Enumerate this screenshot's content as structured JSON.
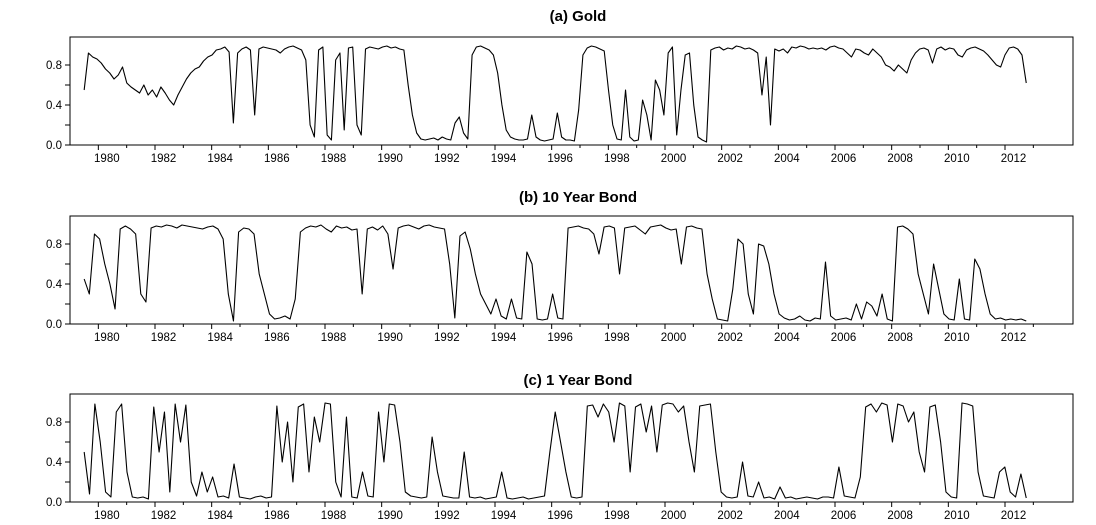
{
  "chart_data": [
    {
      "type": "line",
      "title": "(a) Gold",
      "xlim": [
        1979.0,
        2014.4
      ],
      "ylim": [
        0,
        1
      ],
      "x_ticks": [
        "1980",
        "1982",
        "1984",
        "1986",
        "1988",
        "1990",
        "1992",
        "1994",
        "1996",
        "1998",
        "2000",
        "2002",
        "2004",
        "2006",
        "2008",
        "2010",
        "2012"
      ],
      "y_ticks": [
        "0.0",
        "0.4",
        "0.8"
      ],
      "series": [
        {
          "x_start": 1979.5,
          "x_end": 2012.75,
          "values": [
            0.55,
            0.92,
            0.88,
            0.86,
            0.82,
            0.76,
            0.72,
            0.66,
            0.7,
            0.78,
            0.62,
            0.58,
            0.55,
            0.52,
            0.6,
            0.5,
            0.55,
            0.48,
            0.58,
            0.52,
            0.45,
            0.4,
            0.5,
            0.58,
            0.66,
            0.72,
            0.76,
            0.78,
            0.84,
            0.88,
            0.9,
            0.95,
            0.96,
            0.98,
            0.93,
            0.22,
            0.92,
            0.96,
            0.98,
            0.95,
            0.3,
            0.96,
            0.98,
            0.97,
            0.96,
            0.95,
            0.92,
            0.96,
            0.98,
            0.99,
            0.97,
            0.95,
            0.85,
            0.2,
            0.08,
            0.95,
            0.98,
            0.1,
            0.05,
            0.85,
            0.92,
            0.15,
            0.97,
            0.98,
            0.2,
            0.1,
            0.96,
            0.98,
            0.97,
            0.96,
            0.98,
            0.99,
            0.97,
            0.98,
            0.96,
            0.95,
            0.6,
            0.3,
            0.12,
            0.06,
            0.05,
            0.06,
            0.07,
            0.05,
            0.08,
            0.06,
            0.05,
            0.22,
            0.28,
            0.12,
            0.06,
            0.9,
            0.98,
            0.99,
            0.97,
            0.95,
            0.9,
            0.72,
            0.4,
            0.15,
            0.08,
            0.06,
            0.05,
            0.05,
            0.06,
            0.3,
            0.08,
            0.05,
            0.04,
            0.05,
            0.06,
            0.32,
            0.08,
            0.05,
            0.05,
            0.04,
            0.35,
            0.9,
            0.97,
            0.99,
            0.98,
            0.96,
            0.94,
            0.55,
            0.2,
            0.06,
            0.05,
            0.55,
            0.08,
            0.04,
            0.05,
            0.45,
            0.3,
            0.05,
            0.65,
            0.55,
            0.3,
            0.92,
            0.98,
            0.1,
            0.55,
            0.9,
            0.92,
            0.4,
            0.08,
            0.05,
            0.03,
            0.95,
            0.97,
            0.98,
            0.95,
            0.97,
            0.96,
            0.99,
            0.98,
            0.96,
            0.97,
            0.95,
            0.92,
            0.5,
            0.88,
            0.2,
            0.96,
            0.94,
            0.96,
            0.92,
            0.98,
            0.97,
            0.99,
            0.98,
            0.96,
            0.97,
            0.96,
            0.97,
            0.95,
            0.98,
            0.99,
            0.97,
            0.96,
            0.92,
            0.88,
            0.96,
            0.95,
            0.92,
            0.9,
            0.96,
            0.92,
            0.88,
            0.8,
            0.78,
            0.74,
            0.8,
            0.76,
            0.72,
            0.85,
            0.92,
            0.96,
            0.97,
            0.95,
            0.82,
            0.96,
            0.98,
            0.95,
            0.97,
            0.96,
            0.9,
            0.88,
            0.95,
            0.97,
            0.98,
            0.96,
            0.94,
            0.9,
            0.85,
            0.8,
            0.78,
            0.9,
            0.97,
            0.98,
            0.96,
            0.9,
            0.62
          ]
        }
      ]
    },
    {
      "type": "line",
      "title": "(b) 10 Year Bond",
      "xlim": [
        1979.0,
        2014.4
      ],
      "ylim": [
        0,
        1
      ],
      "x_ticks": [
        "1980",
        "1982",
        "1984",
        "1986",
        "1988",
        "1990",
        "1992",
        "1994",
        "1996",
        "1998",
        "2000",
        "2002",
        "2004",
        "2006",
        "2008",
        "2010",
        "2012"
      ],
      "y_ticks": [
        "0.0",
        "0.4",
        "0.8"
      ],
      "series": [
        {
          "x_start": 1979.5,
          "x_end": 2012.75,
          "values": [
            0.45,
            0.3,
            0.9,
            0.85,
            0.6,
            0.4,
            0.15,
            0.95,
            0.98,
            0.95,
            0.9,
            0.3,
            0.22,
            0.96,
            0.98,
            0.97,
            0.99,
            0.98,
            0.96,
            0.99,
            0.98,
            0.97,
            0.96,
            0.95,
            0.97,
            0.98,
            0.95,
            0.85,
            0.3,
            0.03,
            0.92,
            0.96,
            0.95,
            0.9,
            0.5,
            0.3,
            0.1,
            0.05,
            0.06,
            0.08,
            0.05,
            0.25,
            0.92,
            0.96,
            0.98,
            0.97,
            0.99,
            0.95,
            0.92,
            0.98,
            0.96,
            0.97,
            0.94,
            0.95,
            0.3,
            0.95,
            0.97,
            0.94,
            0.98,
            0.9,
            0.55,
            0.96,
            0.98,
            0.99,
            0.97,
            0.95,
            0.98,
            0.99,
            0.97,
            0.96,
            0.95,
            0.6,
            0.06,
            0.88,
            0.92,
            0.75,
            0.5,
            0.3,
            0.2,
            0.1,
            0.25,
            0.08,
            0.05,
            0.25,
            0.06,
            0.05,
            0.72,
            0.6,
            0.05,
            0.04,
            0.05,
            0.3,
            0.06,
            0.05,
            0.96,
            0.97,
            0.98,
            0.96,
            0.95,
            0.9,
            0.7,
            0.97,
            0.98,
            0.96,
            0.5,
            0.96,
            0.97,
            0.98,
            0.94,
            0.9,
            0.97,
            0.98,
            0.99,
            0.96,
            0.94,
            0.95,
            0.6,
            0.97,
            0.98,
            0.96,
            0.95,
            0.5,
            0.25,
            0.05,
            0.04,
            0.03,
            0.35,
            0.85,
            0.8,
            0.3,
            0.1,
            0.8,
            0.78,
            0.6,
            0.3,
            0.1,
            0.06,
            0.04,
            0.05,
            0.08,
            0.04,
            0.03,
            0.06,
            0.05,
            0.62,
            0.08,
            0.04,
            0.05,
            0.06,
            0.04,
            0.2,
            0.05,
            0.22,
            0.18,
            0.08,
            0.3,
            0.05,
            0.03,
            0.97,
            0.98,
            0.95,
            0.9,
            0.5,
            0.3,
            0.1,
            0.6,
            0.35,
            0.1,
            0.05,
            0.04,
            0.45,
            0.05,
            0.04,
            0.65,
            0.55,
            0.3,
            0.1,
            0.05,
            0.06,
            0.04,
            0.05,
            0.04,
            0.05,
            0.03
          ]
        }
      ]
    },
    {
      "type": "line",
      "title": "(c) 1 Year Bond",
      "xlim": [
        1979.0,
        2014.4
      ],
      "ylim": [
        0,
        1
      ],
      "x_ticks": [
        "1980",
        "1982",
        "1984",
        "1986",
        "1988",
        "1990",
        "1992",
        "1994",
        "1996",
        "1998",
        "2000",
        "2002",
        "2004",
        "2006",
        "2008",
        "2010",
        "2012"
      ],
      "y_ticks": [
        "0.0",
        "0.4",
        "0.8"
      ],
      "series": [
        {
          "x_start": 1979.5,
          "x_end": 2012.75,
          "values": [
            0.5,
            0.08,
            0.98,
            0.6,
            0.1,
            0.05,
            0.9,
            0.98,
            0.3,
            0.05,
            0.04,
            0.05,
            0.03,
            0.95,
            0.5,
            0.9,
            0.1,
            0.98,
            0.6,
            0.97,
            0.2,
            0.06,
            0.3,
            0.1,
            0.25,
            0.05,
            0.06,
            0.04,
            0.38,
            0.05,
            0.04,
            0.03,
            0.05,
            0.06,
            0.04,
            0.05,
            0.96,
            0.4,
            0.8,
            0.2,
            0.95,
            0.98,
            0.3,
            0.85,
            0.6,
            0.99,
            0.98,
            0.2,
            0.05,
            0.85,
            0.05,
            0.04,
            0.3,
            0.06,
            0.05,
            0.9,
            0.4,
            0.98,
            0.97,
            0.6,
            0.1,
            0.06,
            0.05,
            0.04,
            0.05,
            0.65,
            0.3,
            0.06,
            0.05,
            0.04,
            0.04,
            0.5,
            0.05,
            0.04,
            0.05,
            0.03,
            0.04,
            0.05,
            0.3,
            0.04,
            0.03,
            0.04,
            0.05,
            0.03,
            0.04,
            0.05,
            0.06,
            0.5,
            0.9,
            0.6,
            0.3,
            0.05,
            0.04,
            0.05,
            0.96,
            0.97,
            0.85,
            0.98,
            0.9,
            0.6,
            0.99,
            0.96,
            0.3,
            0.95,
            0.98,
            0.7,
            0.96,
            0.5,
            0.97,
            0.99,
            0.98,
            0.9,
            0.96,
            0.6,
            0.3,
            0.96,
            0.97,
            0.98,
            0.5,
            0.1,
            0.05,
            0.04,
            0.05,
            0.4,
            0.06,
            0.05,
            0.2,
            0.04,
            0.05,
            0.03,
            0.15,
            0.04,
            0.05,
            0.03,
            0.04,
            0.05,
            0.04,
            0.03,
            0.05,
            0.05,
            0.04,
            0.35,
            0.06,
            0.05,
            0.04,
            0.25,
            0.95,
            0.98,
            0.9,
            0.99,
            0.97,
            0.6,
            0.98,
            0.96,
            0.8,
            0.9,
            0.5,
            0.3,
            0.95,
            0.97,
            0.6,
            0.1,
            0.05,
            0.04,
            0.99,
            0.98,
            0.96,
            0.3,
            0.06,
            0.05,
            0.04,
            0.3,
            0.35,
            0.1,
            0.05,
            0.28,
            0.04
          ]
        }
      ]
    }
  ]
}
